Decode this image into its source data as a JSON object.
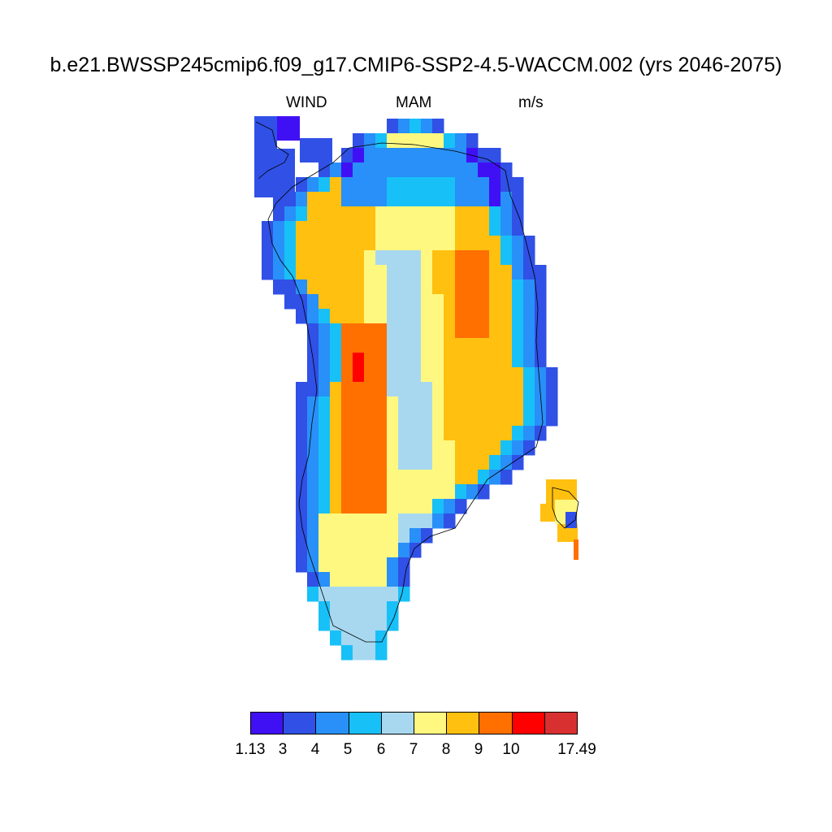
{
  "title": "b.e21.BWSSP245cmip6.f09_g17.CMIP6-SSP2-4.5-WACCM.002 (yrs 2046-2075)",
  "subtitle": {
    "left": "WIND",
    "center": "MAM",
    "right": "m/s"
  },
  "legend": {
    "colors": [
      "#4010f5",
      "#3050e6",
      "#2890f8",
      "#18c0f8",
      "#a8d8f0",
      "#fff880",
      "#ffc010",
      "#ff7000",
      "#ff0000",
      "#d83030"
    ],
    "labels": [
      "1.13",
      "3",
      "4",
      "5",
      "6",
      "7",
      "8",
      "9",
      "10",
      "17.49"
    ]
  },
  "map_data": {
    "variable": "WIND",
    "season": "MAM",
    "units": "m/s",
    "region": "Greenland",
    "pattern": "wind speed lowest along the coasts (3-5 m/s), highest on the western interior slopes (8-10 m/s, local maximum above 10 m/s), and a moderate 6-7 m/s band along the central ice-sheet ridge"
  }
}
